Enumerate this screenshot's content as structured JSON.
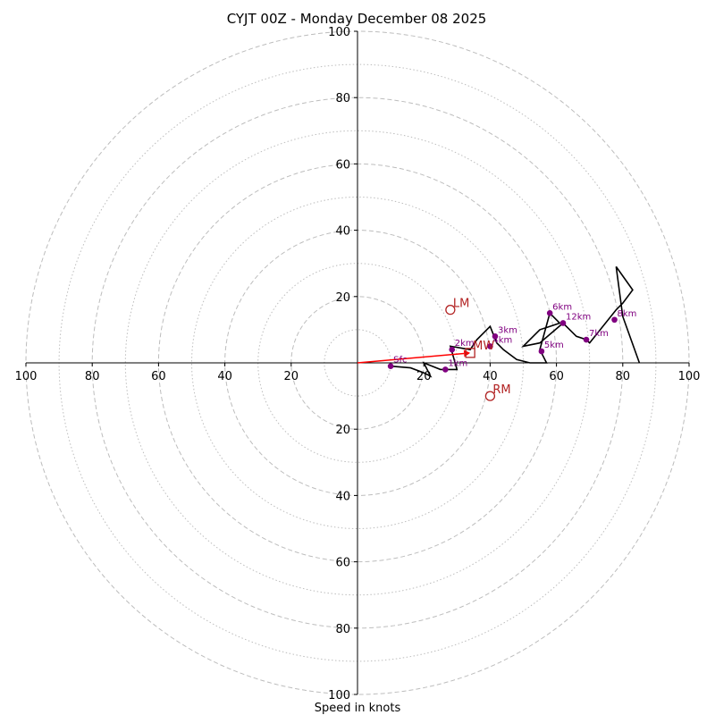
{
  "chart_data": {
    "type": "hodograph",
    "title": "CYJT 00Z - Monday December 08 2025",
    "xlabel": "Speed in knots",
    "range": [
      -100,
      100
    ],
    "ring_major": [
      20,
      40,
      60,
      80,
      100
    ],
    "ring_minor": [
      10,
      30,
      50,
      70,
      90
    ],
    "tick_labels": [
      "100",
      "80",
      "60",
      "40",
      "20",
      "20",
      "40",
      "60",
      "80",
      "100"
    ],
    "tick_values": [
      -100,
      -80,
      -60,
      -40,
      -20,
      20,
      40,
      60,
      80,
      100
    ],
    "y_tick_labels": [
      "100",
      "80",
      "60",
      "40",
      "20",
      "20",
      "40",
      "60",
      "80",
      "100"
    ],
    "y_tick_values": [
      100,
      80,
      60,
      40,
      20,
      -20,
      -40,
      -60,
      -80,
      -100
    ],
    "profile": [
      {
        "u": 10,
        "v": -1
      },
      {
        "u": 16,
        "v": -1.5
      },
      {
        "u": 20,
        "v": -3
      },
      {
        "u": 22,
        "v": -4
      },
      {
        "u": 20,
        "v": 0
      },
      {
        "u": 25,
        "v": -2
      },
      {
        "u": 30,
        "v": -2
      },
      {
        "u": 28,
        "v": 5
      },
      {
        "u": 34,
        "v": 4
      },
      {
        "u": 36,
        "v": 7
      },
      {
        "u": 40,
        "v": 11
      },
      {
        "u": 42,
        "v": 6
      },
      {
        "u": 44,
        "v": 4
      },
      {
        "u": 48,
        "v": 1
      },
      {
        "u": 52,
        "v": 0
      },
      {
        "u": 57,
        "v": 0
      },
      {
        "u": 55,
        "v": 4
      },
      {
        "u": 58,
        "v": 15
      },
      {
        "u": 61,
        "v": 12
      },
      {
        "u": 58,
        "v": 11
      },
      {
        "u": 55,
        "v": 10
      },
      {
        "u": 50,
        "v": 5
      },
      {
        "u": 55,
        "v": 6
      },
      {
        "u": 62,
        "v": 12
      },
      {
        "u": 66,
        "v": 8
      },
      {
        "u": 69,
        "v": 7
      },
      {
        "u": 70,
        "v": 6
      },
      {
        "u": 78,
        "v": 16
      },
      {
        "u": 80,
        "v": 18
      },
      {
        "u": 83,
        "v": 22
      },
      {
        "u": 78,
        "v": 29
      },
      {
        "u": 80,
        "v": 14
      },
      {
        "u": 85,
        "v": 0
      }
    ],
    "levels": [
      {
        "label": "Sfc",
        "u": 10,
        "v": -1
      },
      {
        "label": "1km",
        "u": 26.5,
        "v": -2
      },
      {
        "label": "2km",
        "u": 28.5,
        "v": 4
      },
      {
        "label": "3km",
        "u": 41.5,
        "v": 8
      },
      {
        "label": "4km",
        "u": 40,
        "v": 5
      },
      {
        "label": "5km",
        "u": 55.5,
        "v": 3.5
      },
      {
        "label": "6km",
        "u": 58,
        "v": 15
      },
      {
        "label": "7km",
        "u": 69,
        "v": 7
      },
      {
        "label": "8km",
        "u": 77.5,
        "v": 13
      },
      {
        "label": "12km",
        "u": 62,
        "v": 12
      }
    ],
    "mean_wind": {
      "label": "MW",
      "u": 34,
      "v": 3
    },
    "left_mover": {
      "label": "LM",
      "u": 28,
      "v": 16
    },
    "right_mover": {
      "label": "RM",
      "u": 40,
      "v": -10
    },
    "colors": {
      "ring": "#bdbdbd",
      "profile": "#000000",
      "level": "#800080",
      "motion": "#b22222",
      "vector": "#ff0000"
    }
  }
}
